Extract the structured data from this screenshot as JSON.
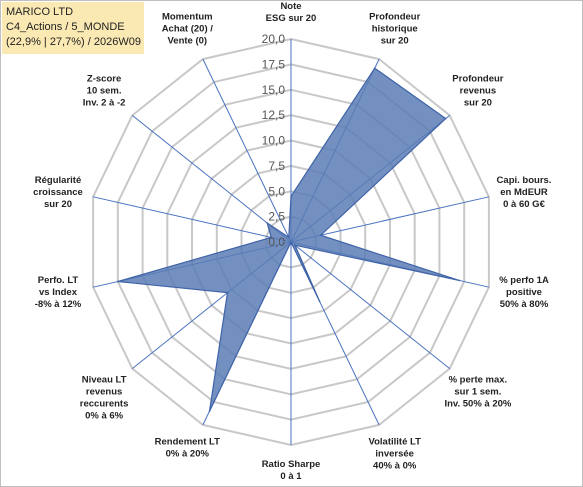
{
  "header": {
    "line1": "MARICO LTD",
    "line2": "C4_Actions / 5_MONDE",
    "line3": "(22,9% | 27,7%) / 2026W09"
  },
  "chart_data": {
    "type": "radar",
    "rmin": 0,
    "rmax": 20,
    "ticks": [
      "0,0",
      "2,5",
      "5,0",
      "7,5",
      "10,0",
      "12,5",
      "15,0",
      "17,5",
      "20,0"
    ],
    "tick_values": [
      0,
      2.5,
      5,
      7.5,
      10,
      12.5,
      15,
      17.5,
      20
    ],
    "grid": true,
    "fill_color": "#5b7db5",
    "line_color": "#3f63a8",
    "axes": [
      {
        "label": [
          "Note",
          "ESG sur 20"
        ],
        "value": 4.5
      },
      {
        "label": [
          "Profondeur",
          "historique",
          "sur 20"
        ],
        "value": 19
      },
      {
        "label": [
          "Profondeur",
          "revenus",
          "sur 20"
        ],
        "value": 19.5
      },
      {
        "label": [
          "Capi. bours.",
          "en MdEUR",
          "0 à 60 G€"
        ],
        "value": 3
      },
      {
        "label": [
          "% perfo 1A",
          "positive",
          "50% à 80%"
        ],
        "value": 17
      },
      {
        "label": [
          "% perte max.",
          "sur 1 sem.",
          "Inv. 50% à 20%"
        ],
        "value": 0.5
      },
      {
        "label": [
          "Volatilité LT",
          "inversée",
          "40% à 0%"
        ],
        "value": 6.5
      },
      {
        "label": [
          "Ratio Sharpe",
          "0 à 1"
        ],
        "value": 0
      },
      {
        "label": [
          "Rendement LT",
          "0% à 20%"
        ],
        "value": 18.5
      },
      {
        "label": [
          "Niveau LT",
          "revenus",
          "reccurents",
          "0% à 6%"
        ],
        "value": 8
      },
      {
        "label": [
          "Perfo. LT",
          "vs Index",
          "-8% à 12%"
        ],
        "value": 17.5
      },
      {
        "label": [
          "Régularité",
          "croissance",
          "sur 20"
        ],
        "value": 2
      },
      {
        "label": [
          "Z-score",
          "10 sem.",
          "Inv. 2 à -2"
        ],
        "value": 3
      },
      {
        "label": [
          "Momentum",
          "Achat (20) /",
          "Vente (0)"
        ],
        "value": 0.5
      }
    ]
  }
}
